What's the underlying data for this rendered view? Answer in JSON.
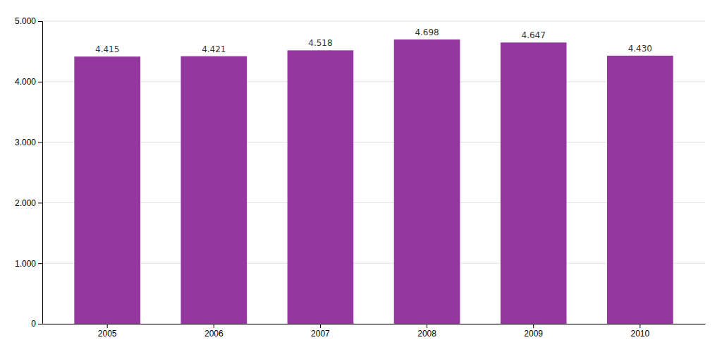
{
  "chart_data": {
    "type": "bar",
    "categories": [
      "2005",
      "2006",
      "2007",
      "2008",
      "2009",
      "2010"
    ],
    "values": [
      4415,
      4421,
      4518,
      4698,
      4647,
      4430
    ],
    "value_labels": [
      "4.415",
      "4.421",
      "4.518",
      "4.698",
      "4.647",
      "4.430"
    ],
    "data_labels": true,
    "color": "#94379E",
    "ylim": [
      0,
      5000
    ],
    "yticks": [
      0,
      {
        "value": 1000,
        "label": "1.000"
      },
      {
        "value": 2000,
        "label": "2.000"
      },
      {
        "value": 3000,
        "label": "3.000"
      },
      {
        "value": 4000,
        "label": "4.000"
      },
      {
        "value": 5000,
        "label": "5.000"
      }
    ],
    "grid": true
  }
}
